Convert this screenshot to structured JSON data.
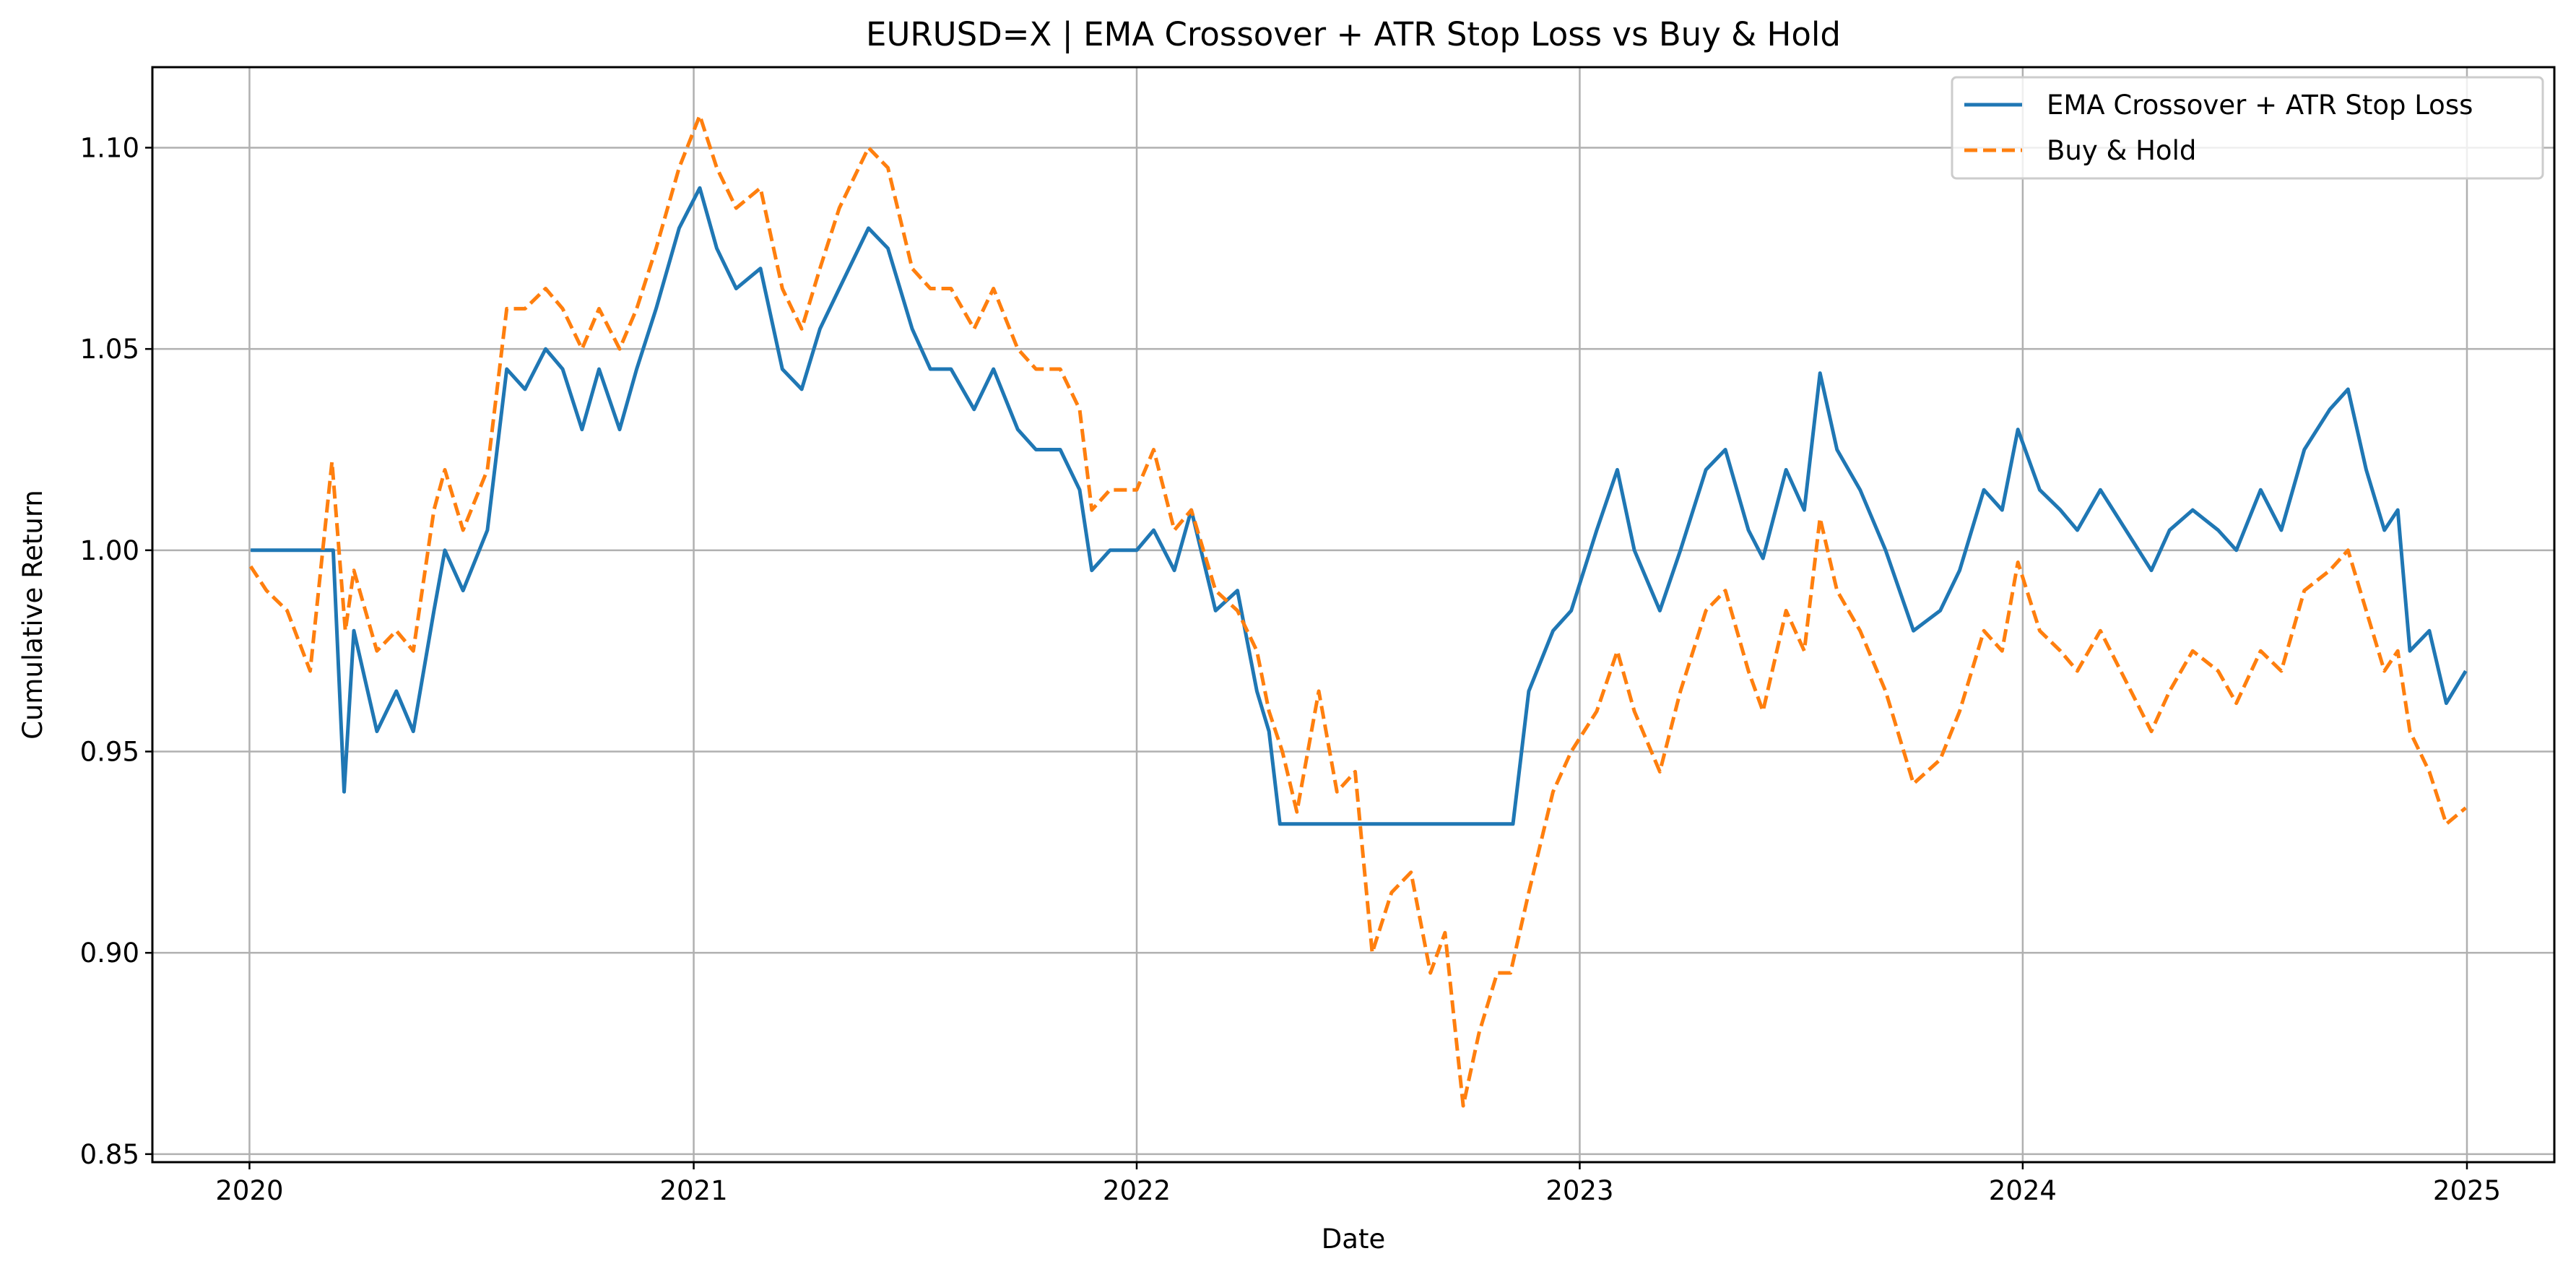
{
  "chart_data": {
    "type": "line",
    "title": "EURUSD=X | EMA Crossover + ATR Stop Loss vs Buy & Hold",
    "xlabel": "Date",
    "ylabel": "Cumulative Return",
    "xlim": [
      "2019-10-13",
      "2025-03-14"
    ],
    "ylim": [
      0.848,
      1.12
    ],
    "x_ticks": [
      "2020",
      "2021",
      "2022",
      "2023",
      "2024",
      "2025"
    ],
    "y_ticks": [
      "0.85",
      "0.90",
      "0.95",
      "1.00",
      "1.05",
      "1.10"
    ],
    "grid": true,
    "legend_position": "top-right",
    "colors": {
      "strategy": "#1f77b4",
      "buy_hold": "#ff7f0e",
      "grid": "#b0b0b0"
    },
    "series": [
      {
        "name": "EMA Crossover + ATR Stop Loss",
        "style": "solid",
        "color": "#1f77b4",
        "points": [
          [
            "2020-01-02",
            1.0
          ],
          [
            "2020-03-10",
            1.0
          ],
          [
            "2020-03-19",
            0.94
          ],
          [
            "2020-03-27",
            0.98
          ],
          [
            "2020-04-15",
            0.955
          ],
          [
            "2020-05-01",
            0.965
          ],
          [
            "2020-05-15",
            0.955
          ],
          [
            "2020-06-01",
            0.985
          ],
          [
            "2020-06-10",
            1.0
          ],
          [
            "2020-06-25",
            0.99
          ],
          [
            "2020-07-15",
            1.005
          ],
          [
            "2020-07-31",
            1.045
          ],
          [
            "2020-08-15",
            1.04
          ],
          [
            "2020-09-01",
            1.05
          ],
          [
            "2020-09-15",
            1.045
          ],
          [
            "2020-10-01",
            1.03
          ],
          [
            "2020-10-15",
            1.045
          ],
          [
            "2020-11-01",
            1.03
          ],
          [
            "2020-11-15",
            1.045
          ],
          [
            "2020-12-01",
            1.06
          ],
          [
            "2020-12-20",
            1.08
          ],
          [
            "2021-01-06",
            1.09
          ],
          [
            "2021-01-20",
            1.075
          ],
          [
            "2021-02-05",
            1.065
          ],
          [
            "2021-02-25",
            1.07
          ],
          [
            "2021-03-15",
            1.045
          ],
          [
            "2021-03-31",
            1.04
          ],
          [
            "2021-04-15",
            1.055
          ],
          [
            "2021-05-01",
            1.065
          ],
          [
            "2021-05-25",
            1.08
          ],
          [
            "2021-06-10",
            1.075
          ],
          [
            "2021-06-30",
            1.055
          ],
          [
            "2021-07-15",
            1.045
          ],
          [
            "2021-08-01",
            1.045
          ],
          [
            "2021-08-20",
            1.035
          ],
          [
            "2021-09-05",
            1.045
          ],
          [
            "2021-09-25",
            1.03
          ],
          [
            "2021-10-10",
            1.025
          ],
          [
            "2021-10-30",
            1.025
          ],
          [
            "2021-11-15",
            1.015
          ],
          [
            "2021-11-25",
            0.995
          ],
          [
            "2021-12-10",
            1.0
          ],
          [
            "2022-01-01",
            1.0
          ],
          [
            "2022-01-15",
            1.005
          ],
          [
            "2022-02-01",
            0.995
          ],
          [
            "2022-02-15",
            1.01
          ],
          [
            "2022-03-07",
            0.985
          ],
          [
            "2022-03-25",
            0.99
          ],
          [
            "2022-04-10",
            0.965
          ],
          [
            "2022-04-20",
            0.955
          ],
          [
            "2022-04-29",
            0.932
          ],
          [
            "2022-11-07",
            0.932
          ],
          [
            "2022-11-20",
            0.965
          ],
          [
            "2022-12-10",
            0.98
          ],
          [
            "2022-12-25",
            0.985
          ],
          [
            "2023-01-15",
            1.005
          ],
          [
            "2023-02-01",
            1.02
          ],
          [
            "2023-02-15",
            1.0
          ],
          [
            "2023-03-08",
            0.985
          ],
          [
            "2023-03-25",
            1.0
          ],
          [
            "2023-04-15",
            1.02
          ],
          [
            "2023-05-01",
            1.025
          ],
          [
            "2023-05-20",
            1.005
          ],
          [
            "2023-06-01",
            0.998
          ],
          [
            "2023-06-20",
            1.02
          ],
          [
            "2023-07-05",
            1.01
          ],
          [
            "2023-07-18",
            1.044
          ],
          [
            "2023-08-01",
            1.025
          ],
          [
            "2023-08-20",
            1.015
          ],
          [
            "2023-09-10",
            1.0
          ],
          [
            "2023-10-03",
            0.98
          ],
          [
            "2023-10-25",
            0.985
          ],
          [
            "2023-11-10",
            0.995
          ],
          [
            "2023-11-30",
            1.015
          ],
          [
            "2023-12-15",
            1.01
          ],
          [
            "2023-12-28",
            1.03
          ],
          [
            "2024-01-15",
            1.015
          ],
          [
            "2024-02-01",
            1.01
          ],
          [
            "2024-02-15",
            1.005
          ],
          [
            "2024-03-05",
            1.015
          ],
          [
            "2024-04-16",
            0.995
          ],
          [
            "2024-05-01",
            1.005
          ],
          [
            "2024-05-20",
            1.01
          ],
          [
            "2024-06-10",
            1.005
          ],
          [
            "2024-06-25",
            1.0
          ],
          [
            "2024-07-15",
            1.015
          ],
          [
            "2024-08-01",
            1.005
          ],
          [
            "2024-08-20",
            1.025
          ],
          [
            "2024-09-10",
            1.035
          ],
          [
            "2024-09-25",
            1.04
          ],
          [
            "2024-10-10",
            1.02
          ],
          [
            "2024-10-25",
            1.005
          ],
          [
            "2024-11-05",
            1.01
          ],
          [
            "2024-11-15",
            0.975
          ],
          [
            "2024-12-01",
            0.98
          ],
          [
            "2024-12-15",
            0.962
          ],
          [
            "2024-12-31",
            0.97
          ]
        ]
      },
      {
        "name": "Buy & Hold",
        "style": "dashed",
        "color": "#ff7f0e",
        "points": [
          [
            "2020-01-02",
            0.996
          ],
          [
            "2020-01-15",
            0.99
          ],
          [
            "2020-02-01",
            0.985
          ],
          [
            "2020-02-20",
            0.97
          ],
          [
            "2020-03-09",
            1.022
          ],
          [
            "2020-03-20",
            0.98
          ],
          [
            "2020-03-27",
            0.995
          ],
          [
            "2020-04-15",
            0.975
          ],
          [
            "2020-05-01",
            0.98
          ],
          [
            "2020-05-15",
            0.975
          ],
          [
            "2020-06-01",
            1.01
          ],
          [
            "2020-06-10",
            1.02
          ],
          [
            "2020-06-25",
            1.005
          ],
          [
            "2020-07-15",
            1.02
          ],
          [
            "2020-07-31",
            1.06
          ],
          [
            "2020-08-15",
            1.06
          ],
          [
            "2020-09-01",
            1.065
          ],
          [
            "2020-09-15",
            1.06
          ],
          [
            "2020-10-01",
            1.05
          ],
          [
            "2020-10-15",
            1.06
          ],
          [
            "2020-11-01",
            1.05
          ],
          [
            "2020-11-15",
            1.06
          ],
          [
            "2020-12-01",
            1.075
          ],
          [
            "2020-12-20",
            1.095
          ],
          [
            "2021-01-06",
            1.108
          ],
          [
            "2021-01-20",
            1.095
          ],
          [
            "2021-02-05",
            1.085
          ],
          [
            "2021-02-25",
            1.09
          ],
          [
            "2021-03-15",
            1.065
          ],
          [
            "2021-03-31",
            1.055
          ],
          [
            "2021-04-15",
            1.07
          ],
          [
            "2021-05-01",
            1.085
          ],
          [
            "2021-05-25",
            1.1
          ],
          [
            "2021-06-10",
            1.095
          ],
          [
            "2021-06-30",
            1.07
          ],
          [
            "2021-07-15",
            1.065
          ],
          [
            "2021-08-01",
            1.065
          ],
          [
            "2021-08-20",
            1.055
          ],
          [
            "2021-09-05",
            1.065
          ],
          [
            "2021-09-25",
            1.05
          ],
          [
            "2021-10-10",
            1.045
          ],
          [
            "2021-10-30",
            1.045
          ],
          [
            "2021-11-15",
            1.035
          ],
          [
            "2021-11-25",
            1.01
          ],
          [
            "2021-12-10",
            1.015
          ],
          [
            "2022-01-01",
            1.015
          ],
          [
            "2022-01-15",
            1.025
          ],
          [
            "2022-02-01",
            1.005
          ],
          [
            "2022-02-15",
            1.01
          ],
          [
            "2022-03-07",
            0.99
          ],
          [
            "2022-03-25",
            0.985
          ],
          [
            "2022-04-10",
            0.975
          ],
          [
            "2022-04-20",
            0.96
          ],
          [
            "2022-05-01",
            0.95
          ],
          [
            "2022-05-13",
            0.935
          ],
          [
            "2022-05-31",
            0.965
          ],
          [
            "2022-06-15",
            0.94
          ],
          [
            "2022-06-30",
            0.945
          ],
          [
            "2022-07-14",
            0.9
          ],
          [
            "2022-07-30",
            0.915
          ],
          [
            "2022-08-15",
            0.92
          ],
          [
            "2022-08-31",
            0.895
          ],
          [
            "2022-09-12",
            0.905
          ],
          [
            "2022-09-27",
            0.862
          ],
          [
            "2022-10-10",
            0.88
          ],
          [
            "2022-10-25",
            0.895
          ],
          [
            "2022-11-05",
            0.895
          ],
          [
            "2022-11-20",
            0.915
          ],
          [
            "2022-12-10",
            0.94
          ],
          [
            "2022-12-25",
            0.95
          ],
          [
            "2023-01-15",
            0.96
          ],
          [
            "2023-02-01",
            0.975
          ],
          [
            "2023-02-15",
            0.96
          ],
          [
            "2023-03-08",
            0.945
          ],
          [
            "2023-03-25",
            0.965
          ],
          [
            "2023-04-15",
            0.985
          ],
          [
            "2023-05-01",
            0.99
          ],
          [
            "2023-05-20",
            0.97
          ],
          [
            "2023-06-01",
            0.96
          ],
          [
            "2023-06-20",
            0.985
          ],
          [
            "2023-07-05",
            0.975
          ],
          [
            "2023-07-18",
            1.008
          ],
          [
            "2023-08-01",
            0.99
          ],
          [
            "2023-08-20",
            0.98
          ],
          [
            "2023-09-10",
            0.965
          ],
          [
            "2023-10-03",
            0.942
          ],
          [
            "2023-10-25",
            0.948
          ],
          [
            "2023-11-10",
            0.96
          ],
          [
            "2023-11-30",
            0.98
          ],
          [
            "2023-12-15",
            0.975
          ],
          [
            "2023-12-28",
            0.997
          ],
          [
            "2024-01-15",
            0.98
          ],
          [
            "2024-02-01",
            0.975
          ],
          [
            "2024-02-15",
            0.97
          ],
          [
            "2024-03-05",
            0.98
          ],
          [
            "2024-04-16",
            0.955
          ],
          [
            "2024-05-01",
            0.965
          ],
          [
            "2024-05-20",
            0.975
          ],
          [
            "2024-06-10",
            0.97
          ],
          [
            "2024-06-25",
            0.962
          ],
          [
            "2024-07-15",
            0.975
          ],
          [
            "2024-08-01",
            0.97
          ],
          [
            "2024-08-20",
            0.99
          ],
          [
            "2024-09-10",
            0.995
          ],
          [
            "2024-09-25",
            1.0
          ],
          [
            "2024-10-10",
            0.985
          ],
          [
            "2024-10-25",
            0.97
          ],
          [
            "2024-11-05",
            0.975
          ],
          [
            "2024-11-15",
            0.955
          ],
          [
            "2024-12-01",
            0.945
          ],
          [
            "2024-12-15",
            0.932
          ],
          [
            "2024-12-31",
            0.936
          ]
        ]
      }
    ]
  }
}
